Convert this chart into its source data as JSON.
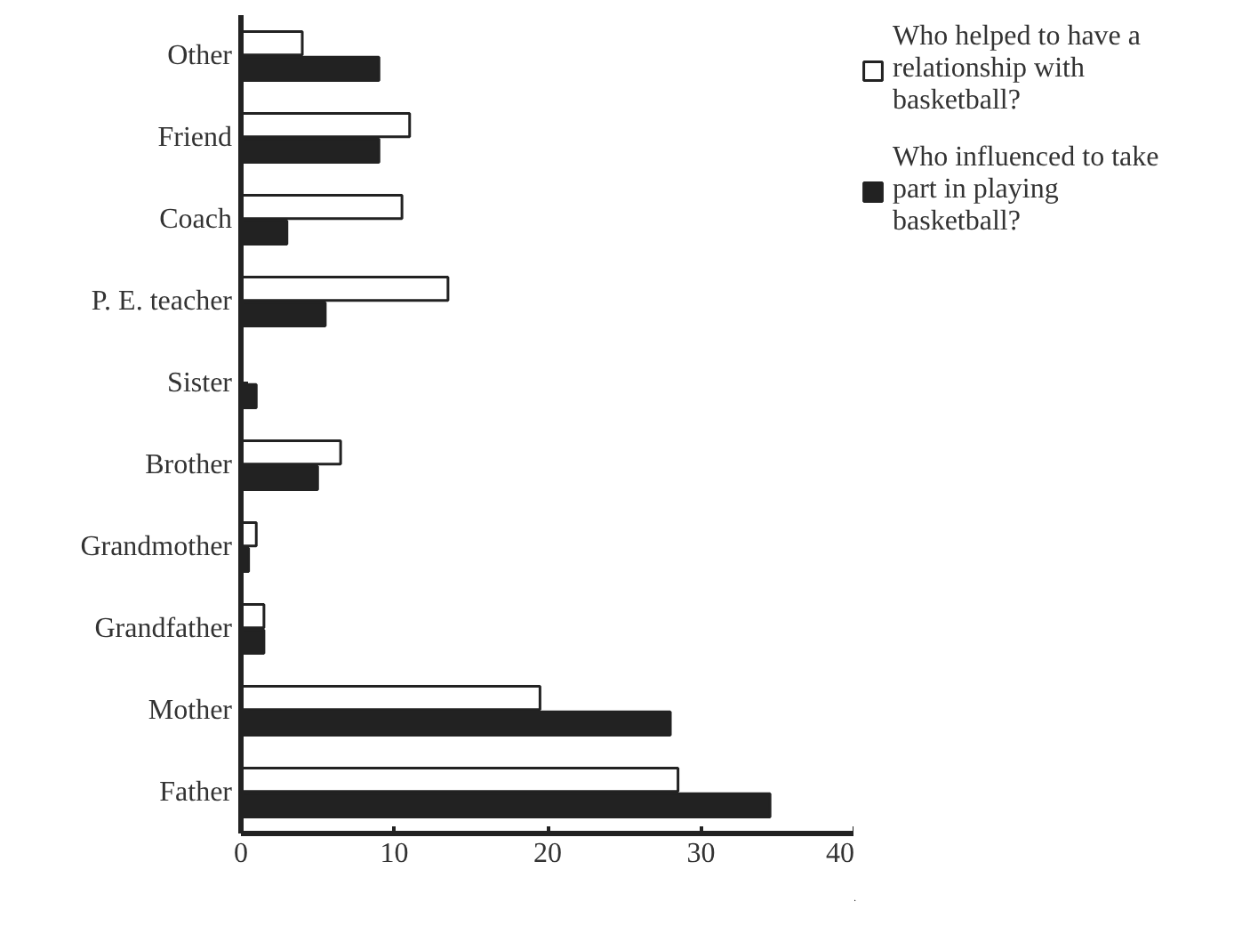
{
  "chart_data": {
    "type": "bar",
    "orientation": "horizontal",
    "categories": [
      "Other",
      "Friend",
      "Coach",
      "P. E. teacher",
      "Sister",
      "Brother",
      "Grandmother",
      "Grandfather",
      "Mother",
      "Father"
    ],
    "series": [
      {
        "name": "Who helped to have a relationship with basketball?",
        "color": "#ffffff",
        "values": [
          4,
          11,
          10.5,
          13.5,
          null,
          6.5,
          1,
          1.5,
          19.5,
          28.5
        ]
      },
      {
        "name": "Who influenced to take part in playing basketball?",
        "color": "#222222",
        "values": [
          9,
          9,
          3,
          5.5,
          1,
          5,
          0.5,
          1.5,
          28,
          34.5
        ]
      }
    ],
    "xlim": [
      0,
      40
    ],
    "xticks": [
      0,
      10,
      20,
      30,
      40
    ],
    "grid": false,
    "legend": "top right"
  }
}
